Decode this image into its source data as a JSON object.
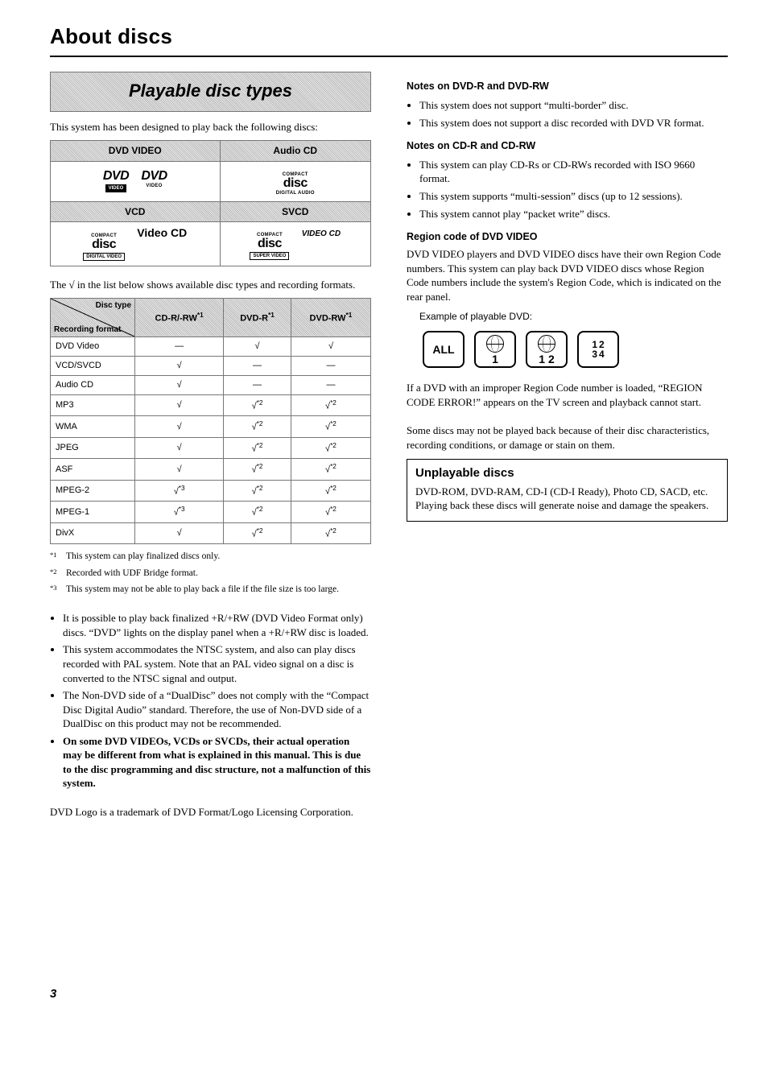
{
  "page_title": "About discs",
  "page_number": "3",
  "left": {
    "section_title": "Playable disc types",
    "intro": "This system has been designed to play back the following discs:",
    "logo_headers": [
      "DVD VIDEO",
      "Audio CD",
      "VCD",
      "SVCD"
    ],
    "logos": {
      "dvd": "DVD",
      "dvd_sub_video": "VIDEO",
      "compact": "COMPACT",
      "disc": "disc",
      "digital_audio": "DIGITAL AUDIO",
      "digital_video": "DIGITAL VIDEO",
      "video_cd": "Video CD",
      "super_video": "SUPER VIDEO",
      "video_cd_logo": "VIDEO CD"
    },
    "table_caption": "The √ in the list below shows available disc types and recording formats.",
    "compat_header_corner": {
      "tr": "Disc type",
      "bl": "Recording format"
    },
    "compat_cols": [
      "CD-R/-RW*1",
      "DVD-R*1",
      "DVD-RW*1"
    ],
    "compat_rows": [
      {
        "label": "DVD Video",
        "cells": [
          "—",
          "√",
          "√"
        ]
      },
      {
        "label": "VCD/SVCD",
        "cells": [
          "√",
          "—",
          "—"
        ]
      },
      {
        "label": "Audio CD",
        "cells": [
          "√",
          "—",
          "—"
        ]
      },
      {
        "label": "MP3",
        "cells": [
          "√",
          "√*2",
          "√*2"
        ]
      },
      {
        "label": "WMA",
        "cells": [
          "√",
          "√*2",
          "√*2"
        ]
      },
      {
        "label": "JPEG",
        "cells": [
          "√",
          "√*2",
          "√*2"
        ]
      },
      {
        "label": "ASF",
        "cells": [
          "√",
          "√*2",
          "√*2"
        ]
      },
      {
        "label": "MPEG-2",
        "cells": [
          "√*3",
          "√*2",
          "√*2"
        ]
      },
      {
        "label": "MPEG-1",
        "cells": [
          "√*3",
          "√*2",
          "√*2"
        ]
      },
      {
        "label": "DivX",
        "cells": [
          "√",
          "√*2",
          "√*2"
        ]
      }
    ],
    "footnotes": [
      {
        "mark": "*1",
        "text": "This system can play finalized discs only."
      },
      {
        "mark": "*2",
        "text": "Recorded with UDF Bridge format."
      },
      {
        "mark": "*3",
        "text": "This system may not be able to play back a file if the file size is too large."
      }
    ],
    "bullets": [
      "It is possible to play back finalized +R/+RW (DVD Video Format only) discs. “DVD” lights on the display panel when a +R/+RW disc is loaded.",
      "This system accommodates the NTSC system, and also can play discs recorded with PAL system. Note that an PAL video signal on a disc is converted to the NTSC signal and output.",
      "The Non-DVD side of a “DualDisc” does not comply with the “Compact Disc Digital Audio” standard. Therefore, the use of Non-DVD side of a DualDisc on this product may not be recommended."
    ],
    "bullet_bold": "On some DVD VIDEOs, VCDs or SVCDs, their actual operation may be different from what is explained in this manual. This is due to the disc programming and disc structure, not a malfunction of this system.",
    "trademark": "DVD Logo is a trademark of DVD Format/Logo Licensing Corporation."
  },
  "right": {
    "s1_title": "Notes on DVD-R and DVD-RW",
    "s1_bullets": [
      "This system does not support “multi-border” disc.",
      "This system does not support a disc recorded with DVD VR format."
    ],
    "s2_title": "Notes on CD-R and CD-RW",
    "s2_bullets": [
      "This system can play CD-Rs or CD-RWs recorded with ISO 9660 format.",
      "This system supports “multi-session” discs (up to 12 sessions).",
      "This system cannot play “packet write” discs."
    ],
    "s3_title": "Region code of DVD VIDEO",
    "s3_body": "DVD VIDEO players and DVD VIDEO discs have their own Region Code numbers. This system can play back DVD VIDEO discs whose Region Code numbers include the system's Region Code, which is indicated on the rear panel.",
    "example_label": "Example of playable DVD:",
    "regions": [
      "ALL",
      "1",
      "1 2",
      "1 2 3 4"
    ],
    "s3_after_1": "If a DVD with an improper Region Code number is loaded, “REGION CODE ERROR!” appears on the TV screen and playback cannot start.",
    "s3_after_2": "Some discs may not be played back because of their disc characteristics, recording conditions, or damage or stain on them.",
    "callout_title": "Unplayable discs",
    "callout_body_1": "DVD-ROM, DVD-RAM, CD-I (CD-I Ready), Photo CD, SACD, etc.",
    "callout_body_2": "Playing back these discs will generate noise and damage the speakers."
  }
}
